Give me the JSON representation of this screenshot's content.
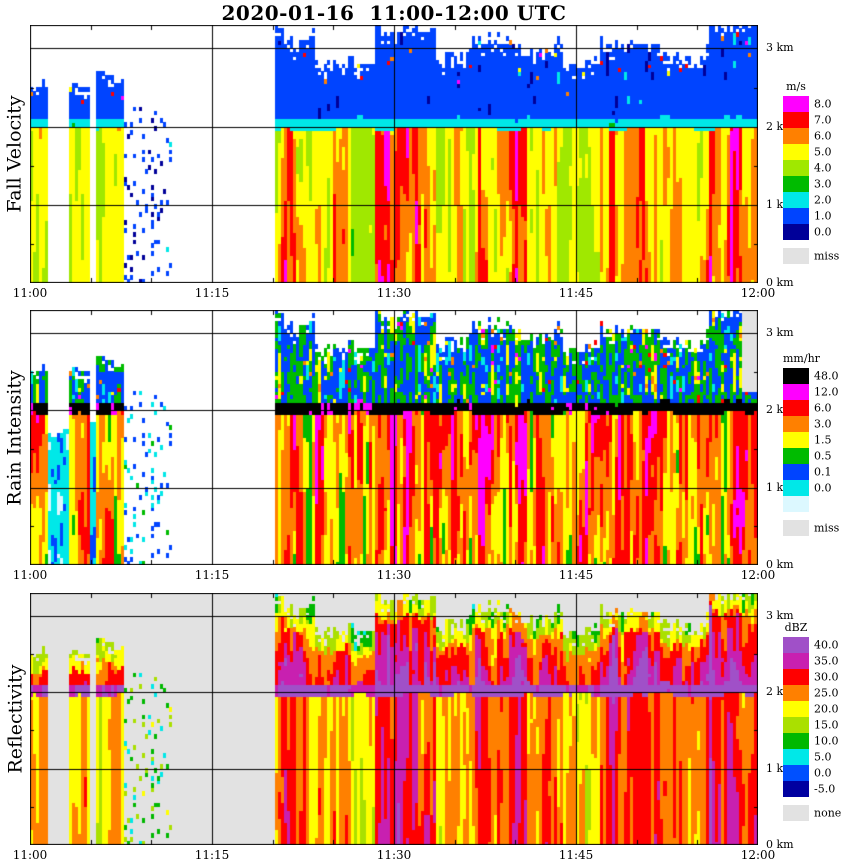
{
  "chart_data": {
    "type": "heatmap",
    "title": "2020-01-16  11:00-12:00 UTC",
    "x_axis": {
      "ticks": [
        {
          "label": "11:00",
          "minute": 0
        },
        {
          "label": "11:15",
          "minute": 15
        },
        {
          "label": "11:30",
          "minute": 30
        },
        {
          "label": "11:45",
          "minute": 45
        },
        {
          "label": "12:00",
          "minute": 60
        }
      ],
      "range_minutes": [
        0,
        60
      ],
      "gridline_minutes": [
        15,
        30,
        45
      ]
    },
    "y_axis": {
      "ticks": [
        {
          "label": "0 km",
          "km": 0
        },
        {
          "label": "1 km",
          "km": 1
        },
        {
          "label": "2 km",
          "km": 2
        },
        {
          "label": "3 km",
          "km": 3
        }
      ],
      "range_km": [
        0,
        3.3
      ],
      "gridline_km": [
        1,
        2,
        3
      ]
    },
    "melting_layer_km": 2.03,
    "panels": [
      {
        "id": "fall_velocity",
        "ylabel": "Fall Velocity",
        "units": "m/s",
        "background": "#FFFFFF",
        "missing": {
          "label": "miss",
          "color": "#E2E2E2"
        },
        "levels": [
          {
            "label": "8.0",
            "min": 8,
            "color": "#FF00FF"
          },
          {
            "label": "7.0",
            "min": 7,
            "color": "#FF0000"
          },
          {
            "label": "6.0",
            "min": 6,
            "color": "#FF8000"
          },
          {
            "label": "5.0",
            "min": 5,
            "color": "#FFFF00"
          },
          {
            "label": "4.0",
            "min": 4,
            "color": "#A0E800"
          },
          {
            "label": "3.0",
            "min": 3,
            "color": "#00BB00"
          },
          {
            "label": "2.0",
            "min": 2,
            "color": "#00E8E8"
          },
          {
            "label": "1.0",
            "min": 1,
            "color": "#0044FF"
          },
          {
            "label": "0.0",
            "min": 0,
            "color": "#000099"
          }
        ]
      },
      {
        "id": "rain_intensity",
        "ylabel": "Rain Intensity",
        "units": "mm/hr",
        "background": "#FFFFFF",
        "missing": {
          "label": "miss",
          "color": "#E2E2E2"
        },
        "levels": [
          {
            "label": "48.0",
            "min": 48,
            "color": "#000000"
          },
          {
            "label": "12.0",
            "min": 12,
            "color": "#FF00FF"
          },
          {
            "label": "6.0",
            "min": 6,
            "color": "#FF0000"
          },
          {
            "label": "3.0",
            "min": 3,
            "color": "#FF8000"
          },
          {
            "label": "1.5",
            "min": 1.5,
            "color": "#FFFF00"
          },
          {
            "label": "0.5",
            "min": 0.5,
            "color": "#00BB00"
          },
          {
            "label": "0.1",
            "min": 0.1,
            "color": "#0044FF"
          },
          {
            "label": "0.0",
            "min": 0.02,
            "color": "#00E8E8"
          },
          {
            "label": "",
            "min": 0,
            "color": "#DCF8FF"
          }
        ]
      },
      {
        "id": "reflectivity",
        "ylabel": "Reflectivity",
        "units": "dBZ",
        "background": "#E2E2E2",
        "missing": {
          "label": "none",
          "color": "#E2E2E2"
        },
        "levels": [
          {
            "label": "40.0",
            "min": 40,
            "color": "#A050C8"
          },
          {
            "label": "35.0",
            "min": 35,
            "color": "#C820B0"
          },
          {
            "label": "30.0",
            "min": 30,
            "color": "#FF0000"
          },
          {
            "label": "25.0",
            "min": 25,
            "color": "#FF8000"
          },
          {
            "label": "20.0",
            "min": 20,
            "color": "#FFFF00"
          },
          {
            "label": "15.0",
            "min": 15,
            "color": "#AAE000"
          },
          {
            "label": "10.0",
            "min": 10,
            "color": "#00B800"
          },
          {
            "label": "5.0",
            "min": 5,
            "color": "#00E8E8"
          },
          {
            "label": "0.0",
            "min": 0,
            "color": "#0050FF"
          },
          {
            "label": "-5.0",
            "min": -5,
            "color": "#0000A0"
          }
        ]
      }
    ],
    "episodes": [
      {
        "t0": 0.0,
        "t1": 1.6,
        "top": 2.55,
        "s": 0.55
      },
      {
        "t0": 1.6,
        "t1": 3.2,
        "top": 1.7,
        "s": 0.06,
        "mode": "fill"
      },
      {
        "t0": 3.2,
        "t1": 5.0,
        "top": 2.45,
        "s": 0.45
      },
      {
        "t0": 5.0,
        "t1": 5.6,
        "top": 1.8,
        "s": 0.06,
        "mode": "fill"
      },
      {
        "t0": 5.6,
        "t1": 7.8,
        "top": 2.65,
        "s": 0.5
      },
      {
        "t0": 7.8,
        "t1": 11.8,
        "top": 2.4,
        "s": 0.1,
        "mode": "specks"
      },
      {
        "t0": 20.3,
        "t1": 23.5,
        "top": 3.15,
        "s": 0.8
      },
      {
        "t0": 23.5,
        "t1": 26.5,
        "top": 2.85,
        "s": 0.6
      },
      {
        "t0": 26.5,
        "t1": 28.5,
        "top": 2.75,
        "s": 0.45
      },
      {
        "t0": 28.5,
        "t1": 33.5,
        "top": 3.25,
        "s": 0.9
      },
      {
        "t0": 33.5,
        "t1": 36.5,
        "top": 2.9,
        "s": 0.6
      },
      {
        "t0": 36.5,
        "t1": 40.5,
        "top": 3.1,
        "s": 0.8
      },
      {
        "t0": 40.5,
        "t1": 44.0,
        "top": 3.0,
        "s": 0.7
      },
      {
        "t0": 44.0,
        "t1": 47.0,
        "top": 2.8,
        "s": 0.55
      },
      {
        "t0": 47.0,
        "t1": 52.0,
        "top": 3.05,
        "s": 0.85
      },
      {
        "t0": 52.0,
        "t1": 56.0,
        "top": 2.9,
        "s": 0.7
      },
      {
        "t0": 56.0,
        "t1": 60.0,
        "top": 3.3,
        "s": 0.9
      }
    ],
    "missing_patch": {
      "panel": "rain_intensity",
      "t0_minute": 58.7,
      "h0_km": 2.25
    }
  }
}
